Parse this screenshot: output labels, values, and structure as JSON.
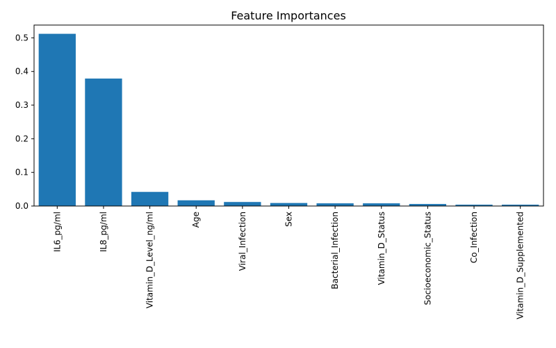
{
  "chart_data": {
    "type": "bar",
    "title": "Feature Importances",
    "xlabel": "",
    "ylabel": "",
    "categories": [
      "IL6_pg/ml",
      "IL8_pg/ml",
      "Vitamin_D_Level_ng/ml",
      "Age",
      "Viral_Infection",
      "Sex",
      "Bacterial_Infection",
      "Vitamin_D_Status",
      "Socioeconomic_Status",
      "Co_Infection",
      "Vitamin_D_Supplemented"
    ],
    "values": [
      0.512,
      0.379,
      0.042,
      0.017,
      0.012,
      0.009,
      0.008,
      0.008,
      0.006,
      0.004,
      0.004
    ],
    "ylim": [
      0,
      0.538
    ],
    "yticks": [
      0.0,
      0.1,
      0.2,
      0.3,
      0.4,
      0.5
    ],
    "ytick_labels": [
      "0.0",
      "0.1",
      "0.2",
      "0.3",
      "0.4",
      "0.5"
    ],
    "grid": false,
    "bar_color": "#1f77b4"
  }
}
